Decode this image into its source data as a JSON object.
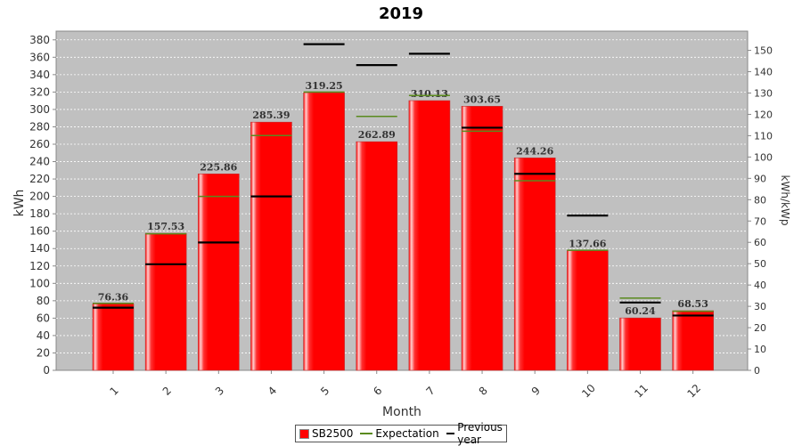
{
  "chart_data": {
    "type": "bar",
    "title": "2019",
    "xlabel": "Month",
    "ylabel": "kWh",
    "y2label": "kWh/kWp",
    "categories": [
      "1",
      "2",
      "3",
      "4",
      "5",
      "6",
      "7",
      "8",
      "9",
      "10",
      "11",
      "12"
    ],
    "ylim": [
      0,
      390
    ],
    "y2lim": [
      0,
      159
    ],
    "yticks": [
      0,
      20,
      40,
      60,
      80,
      100,
      120,
      140,
      160,
      180,
      200,
      220,
      240,
      260,
      280,
      300,
      320,
      340,
      360,
      380
    ],
    "y2ticks": [
      0,
      10,
      20,
      30,
      40,
      50,
      60,
      70,
      80,
      90,
      100,
      110,
      120,
      130,
      140,
      150
    ],
    "grid": true,
    "legend_position": "bottom",
    "series": [
      {
        "name": "SB2500",
        "kind": "bar",
        "color": "#ff0000",
        "values": [
          76.36,
          157.53,
          225.86,
          285.39,
          319.25,
          262.89,
          310.13,
          303.65,
          244.26,
          137.66,
          60.24,
          68.53
        ]
      },
      {
        "name": "Expectation",
        "kind": "marker",
        "color": "#5a8a1e",
        "values": [
          77,
          157,
          200,
          270,
          320,
          292,
          316,
          275,
          218,
          138,
          83,
          68
        ]
      },
      {
        "name": "Previous year",
        "kind": "marker",
        "color": "#000000",
        "values": [
          72,
          122,
          147,
          200,
          375,
          351,
          364,
          279,
          226,
          178,
          78,
          63
        ]
      }
    ],
    "data_labels": [
      "76.36",
      "157.53",
      "225.86",
      "285.39",
      "319.25",
      "262.89",
      "310.13",
      "303.65",
      "244.26",
      "137.66",
      "60.24",
      "68.53"
    ]
  }
}
